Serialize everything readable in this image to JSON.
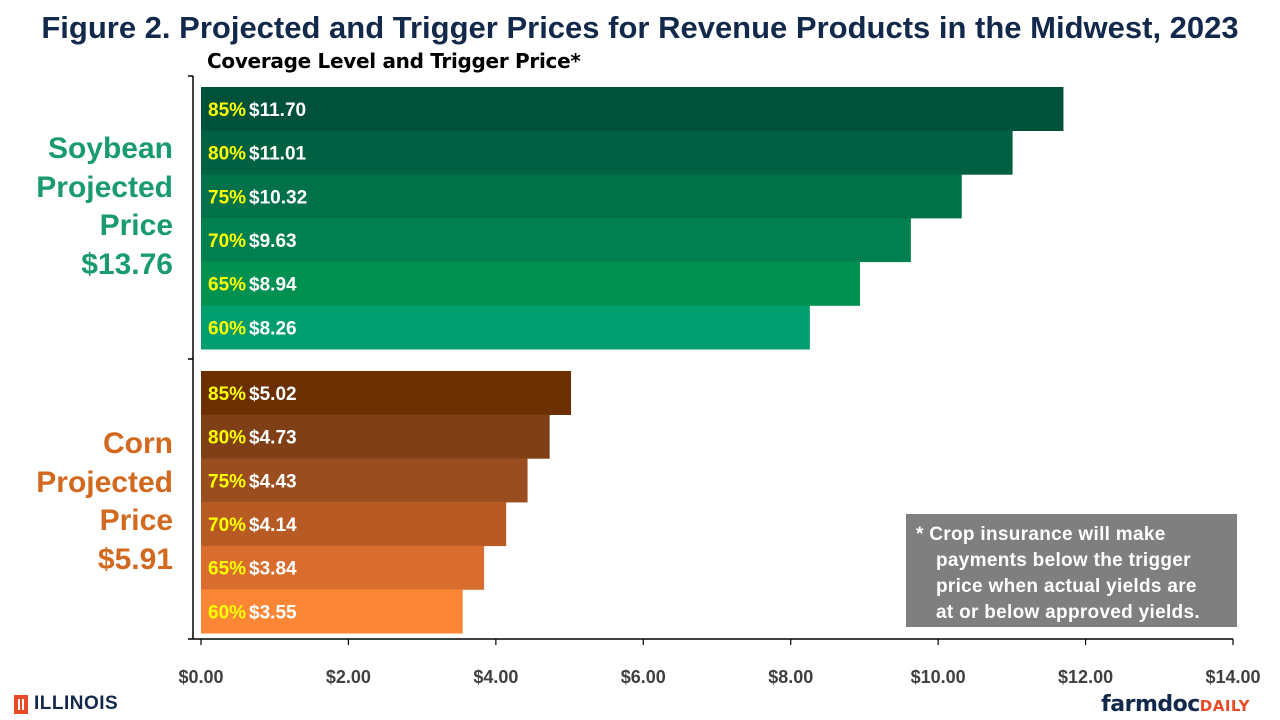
{
  "title": "Figure 2. Projected and Trigger Prices for Revenue Products in the Midwest, 2023",
  "subtitle": "Coverage Level and Trigger Price*",
  "groups": {
    "soybean": {
      "lines": [
        "Soybean",
        "Projected",
        "Price",
        "$13.76"
      ],
      "color": "#1a9b6f"
    },
    "corn": {
      "lines": [
        "Corn",
        "Projected",
        "Price",
        "$5.91"
      ],
      "color": "#d2691e"
    }
  },
  "note": {
    "lines": [
      "* Crop insurance will make",
      "payments below the trigger",
      "price when actual yields are",
      "at or below approved yields."
    ]
  },
  "footer": {
    "left_brand": "ILLINOIS",
    "right_brand_main": "farmdoc",
    "right_brand_sub": "DAILY"
  },
  "colors": {
    "soybean_bars": [
      "#00513a",
      "#006142",
      "#007149",
      "#008051",
      "#00904f",
      "#009e6e"
    ],
    "corn_bars": [
      "#6b2f00",
      "#7f3f17",
      "#9a4e1f",
      "#b85a23",
      "#d96d2d",
      "#fa8636"
    ],
    "label_pct": "#ffff00",
    "label_price": "#ffffff"
  },
  "chart_data": {
    "type": "bar",
    "orientation": "horizontal",
    "title": "Figure 2. Projected and Trigger Prices for Revenue Products in the Midwest, 2023",
    "subtitle": "Coverage Level and Trigger Price*",
    "xlim": [
      0,
      14
    ],
    "x_ticks": [
      "$0.00",
      "$2.00",
      "$4.00",
      "$6.00",
      "$8.00",
      "$10.00",
      "$12.00",
      "$14.00"
    ],
    "grid": false,
    "series": [
      {
        "name": "Soybean",
        "categories": [
          "85%",
          "80%",
          "75%",
          "70%",
          "65%",
          "60%"
        ],
        "values": [
          11.7,
          11.01,
          10.32,
          9.63,
          8.94,
          8.26
        ],
        "labels": [
          "$11.70",
          "$11.01",
          "$10.32",
          "$9.63",
          "$8.94",
          "$8.26"
        ]
      },
      {
        "name": "Corn",
        "categories": [
          "85%",
          "80%",
          "75%",
          "70%",
          "65%",
          "60%"
        ],
        "values": [
          5.02,
          4.73,
          4.43,
          4.14,
          3.84,
          3.55
        ],
        "labels": [
          "$5.02",
          "$4.73",
          "$4.43",
          "$4.14",
          "$3.84",
          "$3.55"
        ]
      }
    ]
  }
}
